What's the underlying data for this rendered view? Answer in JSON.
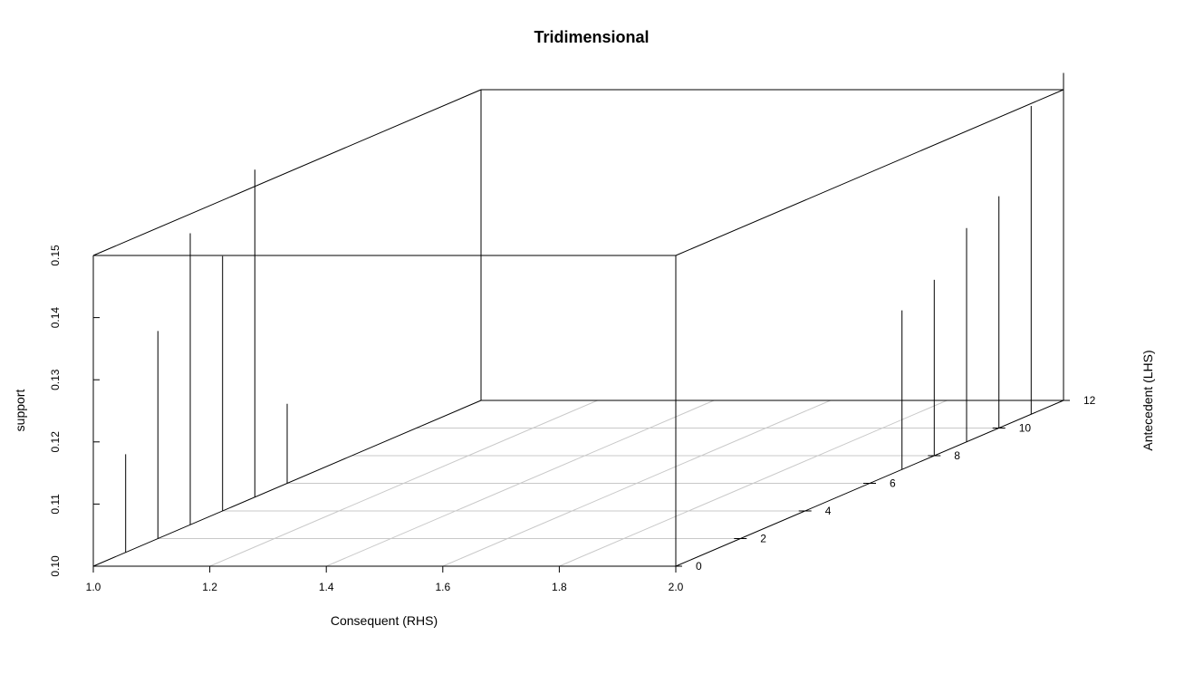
{
  "chart_data": {
    "type": "scatter",
    "subtype": "3d-histogram",
    "title": "Tridimensional",
    "xlabel": "Consequent (RHS)",
    "ylabel": "Antecedent (LHS)",
    "zlabel": "support",
    "xlim": [
      1.0,
      2.0
    ],
    "ylim": [
      0,
      12
    ],
    "zlim": [
      0.1,
      0.15
    ],
    "x_ticks": [
      "1.0",
      "1.2",
      "1.4",
      "1.6",
      "1.8",
      "2.0"
    ],
    "y_ticks": [
      "0",
      "2",
      "4",
      "6",
      "8",
      "10",
      "12"
    ],
    "z_ticks": [
      "0.10",
      "0.11",
      "0.12",
      "0.13",
      "0.14",
      "0.15"
    ],
    "grid": true,
    "points": [
      {
        "x": 1,
        "y": 1,
        "z": 0.1158
      },
      {
        "x": 1,
        "y": 2,
        "z": 0.1334
      },
      {
        "x": 1,
        "y": 3,
        "z": 0.1469
      },
      {
        "x": 1,
        "y": 4,
        "z": 0.141
      },
      {
        "x": 1,
        "y": 5,
        "z": 0.1527
      },
      {
        "x": 1,
        "y": 6,
        "z": 0.1128
      },
      {
        "x": 2,
        "y": 7,
        "z": 0.1256
      },
      {
        "x": 2,
        "y": 8,
        "z": 0.1283
      },
      {
        "x": 2,
        "y": 9,
        "z": 0.1344
      },
      {
        "x": 2,
        "y": 10,
        "z": 0.1373
      },
      {
        "x": 2,
        "y": 11,
        "z": 0.1496
      },
      {
        "x": 2,
        "y": 12,
        "z": 0.1527
      }
    ]
  }
}
